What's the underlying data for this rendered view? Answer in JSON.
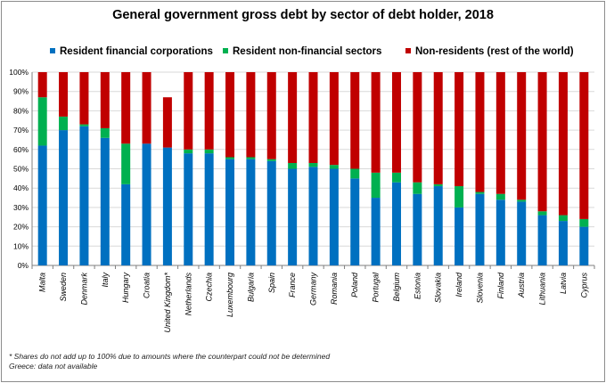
{
  "chart_data": {
    "type": "bar",
    "stacked": true,
    "title": "General government gross debt by sector of debt holder, 2018",
    "ylim": [
      0,
      100
    ],
    "yticks": [
      "0%",
      "10%",
      "20%",
      "30%",
      "40%",
      "50%",
      "60%",
      "70%",
      "80%",
      "90%",
      "100%"
    ],
    "grid": true,
    "legend_position": "top",
    "categories": [
      "Malta",
      "Sweden",
      "Denmark",
      "Italy",
      "Hungary",
      "Croatia",
      "United Kingdom*",
      "Netherlands",
      "Czechia",
      "Luxembourg",
      "Bulgaria",
      "Spain",
      "France",
      "Germany",
      "Romania",
      "Poland",
      "Portugal",
      "Belgium",
      "Estonia",
      "Slovakia",
      "Ireland",
      "Slovenia",
      "Finland",
      "Austria",
      "Lithuania",
      "Latvia",
      "Cyprus"
    ],
    "series": [
      {
        "name": "Resident financial corporations",
        "color": "#0070c0",
        "values": [
          62,
          70,
          72,
          66,
          42,
          63,
          61,
          58,
          58,
          55,
          55,
          54,
          50,
          51,
          50,
          45,
          35,
          43,
          37,
          41,
          30,
          37,
          34,
          33,
          26,
          23,
          20
        ]
      },
      {
        "name": "Resident non-financial sectors",
        "color": "#00b050",
        "values": [
          25,
          7,
          1,
          5,
          21,
          0,
          0,
          2,
          2,
          1,
          1,
          1,
          3,
          2,
          2,
          5,
          13,
          5,
          6,
          1,
          11,
          1,
          3,
          1,
          2,
          3,
          4
        ]
      },
      {
        "name": "Non-residents (rest of the world)",
        "color": "#c00000",
        "values": [
          13,
          23,
          27,
          29,
          37,
          37,
          26,
          40,
          40,
          44,
          44,
          45,
          47,
          47,
          48,
          50,
          52,
          52,
          57,
          58,
          59,
          62,
          63,
          66,
          72,
          74,
          76
        ]
      }
    ]
  },
  "footnotes": [
    "* Shares do not add up to 100% due to amounts where the counterpart could not be determined",
    "Greece: data not available"
  ]
}
